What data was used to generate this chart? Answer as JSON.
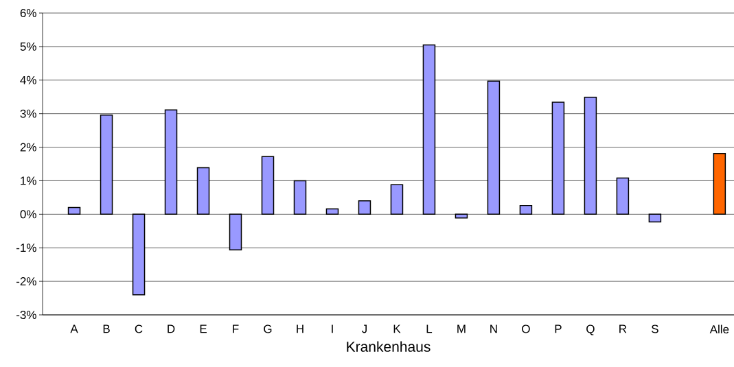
{
  "chart_data": {
    "type": "bar",
    "xlabel": "Krankenhaus",
    "categories": [
      "A",
      "B",
      "C",
      "D",
      "E",
      "F",
      "G",
      "H",
      "I",
      "J",
      "K",
      "L",
      "M",
      "N",
      "O",
      "P",
      "Q",
      "R",
      "S",
      null,
      "Alle"
    ],
    "values": [
      0.2,
      2.96,
      -2.4,
      3.11,
      1.39,
      -1.06,
      1.72,
      1.0,
      0.16,
      0.4,
      0.88,
      5.05,
      -0.11,
      3.97,
      0.26,
      3.34,
      3.49,
      1.08,
      -0.23,
      null,
      1.81
    ],
    "colors": [
      "#9999ff",
      "#9999ff",
      "#9999ff",
      "#9999ff",
      "#9999ff",
      "#9999ff",
      "#9999ff",
      "#9999ff",
      "#9999ff",
      "#9999ff",
      "#9999ff",
      "#9999ff",
      "#9999ff",
      "#9999ff",
      "#9999ff",
      "#9999ff",
      "#9999ff",
      "#9999ff",
      "#9999ff",
      "#9999ff",
      "#ff6600"
    ],
    "ylim": [
      -3,
      6
    ],
    "yticks": [
      {
        "value": -3,
        "label": "-3%"
      },
      {
        "value": -2,
        "label": "-2%"
      },
      {
        "value": -1,
        "label": "-1%"
      },
      {
        "value": 0,
        "label": "0%"
      },
      {
        "value": 1,
        "label": "1%"
      },
      {
        "value": 2,
        "label": "2%"
      },
      {
        "value": 3,
        "label": "3%"
      },
      {
        "value": 4,
        "label": "4%"
      },
      {
        "value": 5,
        "label": "5%"
      },
      {
        "value": 6,
        "label": "6%"
      }
    ],
    "grid": "y"
  }
}
